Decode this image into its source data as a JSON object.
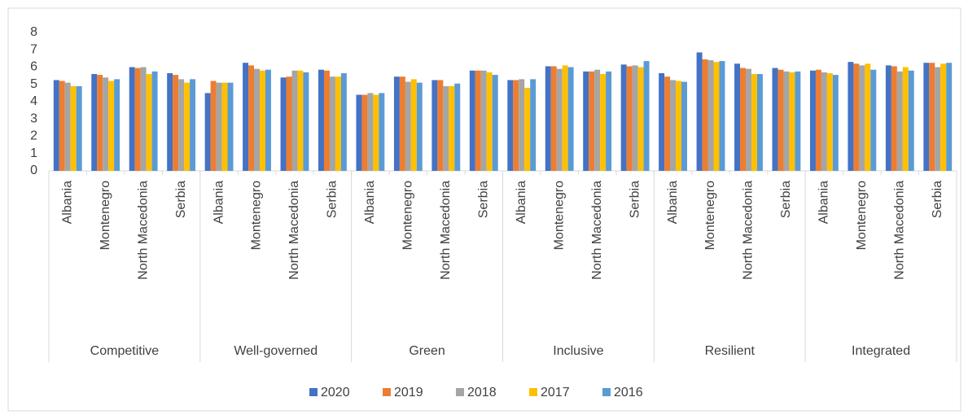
{
  "chart_data": {
    "type": "bar",
    "groups": [
      "Competitive",
      "Well-governed",
      "Green",
      "Inclusive",
      "Resilient",
      "Integrated"
    ],
    "categories": [
      "Albania",
      "Montenegro",
      "North Macedonia",
      "Serbia",
      "Albania",
      "Montenegro",
      "North Macedonia",
      "Serbia",
      "Albania",
      "Montenegro",
      "North Macedonia",
      "Serbia",
      "Albania",
      "Montenegro",
      "North Macedonia",
      "Serbia",
      "Albania",
      "Montenegro",
      "North Macedonia",
      "Serbia",
      "Albania",
      "Montenegro",
      "North Macedonia",
      "Serbia"
    ],
    "series": [
      {
        "name": "2020",
        "color": "#4472c4",
        "values": [
          5.25,
          5.6,
          6.0,
          5.65,
          4.5,
          6.25,
          5.4,
          5.85,
          4.4,
          5.45,
          5.25,
          5.8,
          5.25,
          6.05,
          5.75,
          6.15,
          5.65,
          6.85,
          6.2,
          5.95,
          5.8,
          6.3,
          6.1,
          6.25
        ]
      },
      {
        "name": "2019",
        "color": "#ed7d31",
        "values": [
          5.2,
          5.55,
          5.95,
          5.55,
          5.2,
          6.1,
          5.45,
          5.8,
          4.4,
          5.45,
          5.25,
          5.8,
          5.25,
          6.05,
          5.75,
          6.05,
          5.45,
          6.45,
          5.95,
          5.85,
          5.85,
          6.2,
          6.05,
          6.25
        ]
      },
      {
        "name": "2018",
        "color": "#a5a5a5",
        "values": [
          5.1,
          5.4,
          6.0,
          5.3,
          5.1,
          5.9,
          5.8,
          5.45,
          4.5,
          5.15,
          4.9,
          5.8,
          5.3,
          5.9,
          5.85,
          6.1,
          5.25,
          6.4,
          5.9,
          5.75,
          5.7,
          6.1,
          5.75,
          6.0
        ]
      },
      {
        "name": "2017",
        "color": "#ffc000",
        "values": [
          4.9,
          5.2,
          5.6,
          5.1,
          5.1,
          5.8,
          5.8,
          5.45,
          4.4,
          5.3,
          4.9,
          5.7,
          4.8,
          6.1,
          5.6,
          6.0,
          5.2,
          6.3,
          5.6,
          5.7,
          5.65,
          6.2,
          6.0,
          6.2
        ]
      },
      {
        "name": "2016",
        "color": "#5b9bd5",
        "values": [
          4.9,
          5.3,
          5.75,
          5.3,
          5.1,
          5.85,
          5.7,
          5.65,
          4.5,
          5.1,
          5.05,
          5.55,
          5.3,
          6.0,
          5.75,
          6.35,
          5.15,
          6.35,
          5.6,
          5.75,
          5.55,
          5.85,
          5.8,
          6.25
        ]
      }
    ],
    "ylim": [
      0,
      8
    ],
    "yticks": [
      0,
      1,
      2,
      3,
      4,
      5,
      6,
      7,
      8
    ],
    "grid": false,
    "legend": "bottom"
  }
}
